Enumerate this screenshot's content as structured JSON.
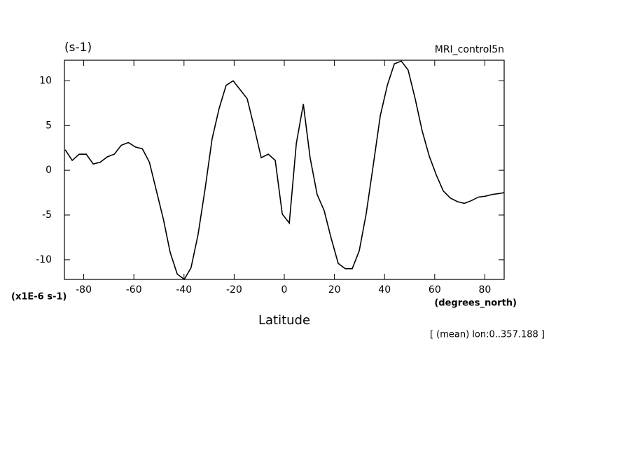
{
  "chart_data": {
    "type": "line",
    "title": "MRI_control5n",
    "y_label": "(s-1)",
    "y_scale_label": "(x1E-6 s-1)",
    "x_unit_label": "(degrees_north)",
    "x_label": "Latitude",
    "annotation": "[ (mean) lon:0..357.188 ]",
    "xlim": [
      -87.7,
      87.7
    ],
    "ylim": [
      -12.2,
      12.3
    ],
    "xticks": [
      -80,
      -60,
      -40,
      -20,
      0,
      20,
      40,
      60,
      80
    ],
    "yticks": [
      -10,
      -5,
      0,
      5,
      10
    ],
    "x": [
      -87.4,
      -84.6,
      -81.8,
      -79.0,
      -76.2,
      -73.4,
      -70.6,
      -67.8,
      -65.0,
      -62.2,
      -59.4,
      -56.6,
      -53.8,
      -51.0,
      -48.2,
      -45.5,
      -42.7,
      -39.9,
      -37.2,
      -34.4,
      -31.6,
      -28.8,
      -26.0,
      -23.2,
      -20.4,
      -17.6,
      -14.8,
      -12.0,
      -9.2,
      -6.4,
      -3.6,
      -0.8,
      2.0,
      4.8,
      7.6,
      10.3,
      13.1,
      15.9,
      18.7,
      21.5,
      24.3,
      27.1,
      29.9,
      32.7,
      35.5,
      38.3,
      41.1,
      43.9,
      46.7,
      49.4,
      52.2,
      55.0,
      57.8,
      60.6,
      63.4,
      66.2,
      69.0,
      71.8,
      74.6,
      77.4,
      80.2,
      83.0,
      85.8,
      87.7
    ],
    "series": [
      {
        "color": "#000000",
        "values": [
          2.3,
          1.1,
          1.8,
          1.8,
          0.7,
          0.9,
          1.5,
          1.8,
          2.8,
          3.1,
          2.6,
          2.4,
          0.9,
          -2.3,
          -5.5,
          -9.2,
          -11.6,
          -12.2,
          -10.9,
          -7.2,
          -2.1,
          3.5,
          6.9,
          9.5,
          10.0,
          9.0,
          8.0,
          4.8,
          1.4,
          1.8,
          1.1,
          -4.9,
          -5.9,
          3.0,
          7.4,
          1.4,
          -2.7,
          -4.5,
          -7.6,
          -10.4,
          -11.0,
          -11.0,
          -9.0,
          -4.8,
          0.6,
          6.1,
          9.5,
          11.9,
          12.2,
          11.2,
          8.0,
          4.4,
          1.6,
          -0.5,
          -2.3,
          -3.1,
          -3.5,
          -3.7,
          -3.4,
          -3.0,
          -2.9,
          -2.7,
          -2.6,
          -2.5
        ]
      }
    ]
  }
}
